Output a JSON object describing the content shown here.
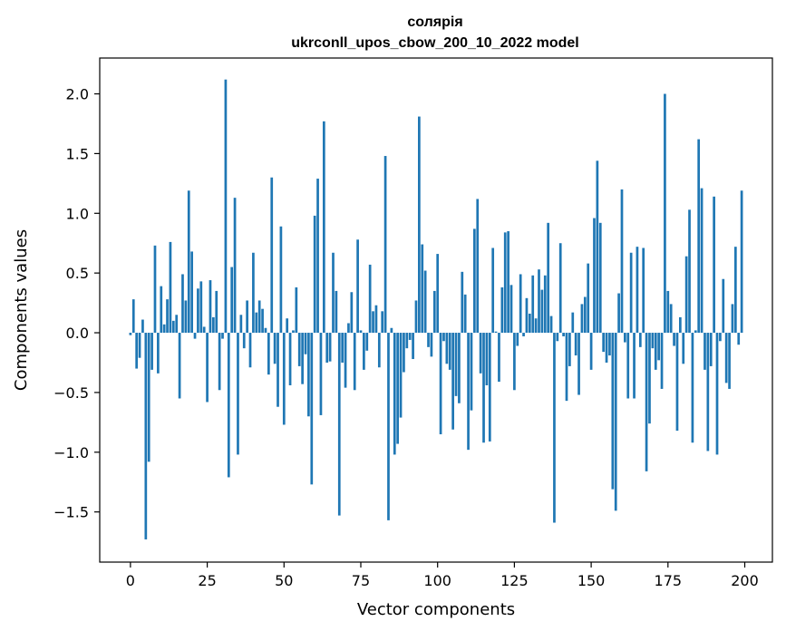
{
  "chart_data": {
    "type": "bar",
    "title": "солярія",
    "subtitle": "ukrconll_upos_cbow_200_10_2022 model",
    "xlabel": "Vector components",
    "ylabel": "Components values",
    "xlim": [
      -10,
      209
    ],
    "ylim": [
      -1.92,
      2.3
    ],
    "xticks": [
      0,
      25,
      50,
      75,
      100,
      125,
      150,
      175,
      200
    ],
    "yticks": [
      -1.5,
      -1.0,
      -0.5,
      0.0,
      0.5,
      1.0,
      1.5,
      2.0
    ],
    "ytick_labels": [
      "−1.5",
      "−1.0",
      "−0.5",
      "0.0",
      "0.5",
      "1.0",
      "1.5",
      "2.0"
    ],
    "bar_color": "#1f77b4",
    "grid": false,
    "values": [
      -0.02,
      0.28,
      -0.3,
      -0.21,
      0.11,
      -1.73,
      -1.08,
      -0.31,
      0.73,
      -0.34,
      0.39,
      0.07,
      0.28,
      0.76,
      0.1,
      0.15,
      -0.55,
      0.49,
      0.27,
      1.19,
      0.68,
      -0.05,
      0.37,
      0.43,
      0.05,
      -0.58,
      0.44,
      0.13,
      0.35,
      -0.48,
      -0.05,
      2.12,
      -1.21,
      0.55,
      1.13,
      -1.02,
      0.15,
      -0.13,
      0.27,
      -0.29,
      0.67,
      0.17,
      0.27,
      0.2,
      0.04,
      -0.35,
      1.3,
      -0.26,
      -0.62,
      0.89,
      -0.77,
      0.12,
      -0.44,
      0.02,
      0.38,
      -0.28,
      -0.43,
      -0.18,
      -0.7,
      -1.27,
      0.98,
      1.29,
      -0.69,
      1.77,
      -0.25,
      -0.24,
      0.67,
      0.35,
      -1.53,
      -0.25,
      -0.46,
      0.08,
      0.34,
      -0.48,
      0.78,
      0.02,
      -0.31,
      -0.15,
      0.57,
      0.18,
      0.23,
      -0.29,
      0.18,
      1.48,
      -1.57,
      0.04,
      -1.02,
      -0.93,
      -0.71,
      -0.33,
      -0.13,
      -0.06,
      -0.22,
      0.27,
      1.81,
      0.74,
      0.52,
      -0.12,
      -0.2,
      0.35,
      0.66,
      -0.85,
      -0.07,
      -0.26,
      -0.31,
      -0.81,
      -0.53,
      -0.59,
      0.51,
      0.32,
      -0.98,
      -0.65,
      0.87,
      1.12,
      -0.34,
      -0.92,
      -0.44,
      -0.91,
      0.71,
      0.01,
      -0.41,
      0.38,
      0.84,
      0.85,
      0.4,
      -0.48,
      -0.11,
      0.49,
      -0.03,
      0.29,
      0.16,
      0.48,
      0.12,
      0.53,
      0.36,
      0.48,
      0.92,
      0.14,
      -1.59,
      -0.07,
      0.75,
      -0.03,
      -0.57,
      -0.28,
      0.17,
      -0.19,
      -0.52,
      0.24,
      0.3,
      0.58,
      -0.31,
      0.96,
      1.44,
      0.92,
      -0.16,
      -0.25,
      -0.19,
      -1.31,
      -1.49,
      0.33,
      1.2,
      -0.08,
      -0.55,
      0.67,
      -0.55,
      0.72,
      -0.12,
      0.71,
      -1.16,
      -0.76,
      -0.13,
      -0.31,
      -0.23,
      -0.47,
      2.0,
      0.35,
      0.24,
      -0.11,
      -0.82,
      0.13,
      -0.26,
      0.64,
      1.03,
      -0.92,
      0.02,
      1.62,
      1.21,
      -0.31,
      -0.99,
      -0.28,
      1.14,
      -1.02,
      -0.07,
      0.45,
      -0.42,
      -0.47,
      0.24,
      0.72,
      -0.1,
      1.19
    ]
  }
}
